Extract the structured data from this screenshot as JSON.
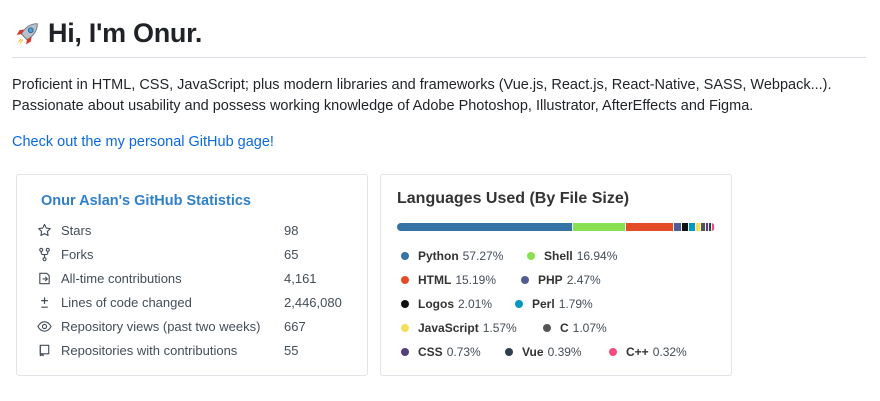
{
  "header": {
    "title": "Hi, I'm Onur.",
    "icon": "rocket-icon"
  },
  "intro": {
    "line1": "Proficient in HTML, CSS, JavaScript; plus modern libraries and frameworks (Vue.js, React.js, React-Native, SASS, Webpack...).",
    "line2": "Passionate about usability and possess working knowledge of Adobe Photoshop, Illustrator, AfterEffects and Figma."
  },
  "link": {
    "text": "Check out the my personal GitHub gage!"
  },
  "stats": {
    "title": "Onur Aslan's GitHub Statistics",
    "rows": [
      {
        "icon": "star-icon",
        "label": "Stars",
        "value": "98"
      },
      {
        "icon": "fork-icon",
        "label": "Forks",
        "value": "65"
      },
      {
        "icon": "contributions-icon",
        "label": "All-time contributions",
        "value": "4,161"
      },
      {
        "icon": "plus-minus-icon",
        "label": "Lines of code changed",
        "value": "2,446,080"
      },
      {
        "icon": "eye-icon",
        "label": "Repository views (past two weeks)",
        "value": "667"
      },
      {
        "icon": "repo-icon",
        "label": "Repositories with contributions",
        "value": "55"
      }
    ]
  },
  "languages": {
    "title": "Languages Used (By File Size)",
    "items": [
      {
        "name": "Python",
        "percent": "57.27%",
        "value": 57.27,
        "color": "#3572A5"
      },
      {
        "name": "Shell",
        "percent": "16.94%",
        "value": 16.94,
        "color": "#89e051"
      },
      {
        "name": "HTML",
        "percent": "15.19%",
        "value": 15.19,
        "color": "#e34c26"
      },
      {
        "name": "PHP",
        "percent": "2.47%",
        "value": 2.47,
        "color": "#4F5D95"
      },
      {
        "name": "Logos",
        "percent": "2.01%",
        "value": 2.01,
        "color": "#111111"
      },
      {
        "name": "Perl",
        "percent": "1.79%",
        "value": 1.79,
        "color": "#0298c3"
      },
      {
        "name": "JavaScript",
        "percent": "1.57%",
        "value": 1.57,
        "color": "#f1e05a"
      },
      {
        "name": "C",
        "percent": "1.07%",
        "value": 1.07,
        "color": "#555555"
      },
      {
        "name": "CSS",
        "percent": "0.73%",
        "value": 0.73,
        "color": "#563d7c"
      },
      {
        "name": "Vue",
        "percent": "0.39%",
        "value": 0.39,
        "color": "#2c3e50"
      },
      {
        "name": "C++",
        "percent": "0.32%",
        "value": 0.32,
        "color": "#f34b7d"
      }
    ]
  }
}
